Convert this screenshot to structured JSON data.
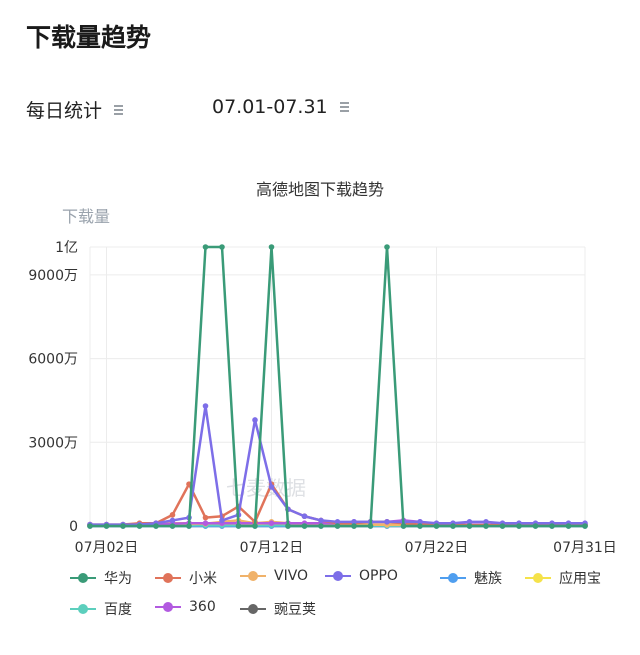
{
  "page": {
    "title": "下载量趋势",
    "filter_daily": "每日统计",
    "filter_range": "07.01-07.31",
    "watermark": "七麦数据"
  },
  "chart_data": {
    "type": "line",
    "title": "高德地图下载趋势",
    "ylabel": "下载量",
    "ylim": [
      0,
      100000000
    ],
    "y_ticks": [
      0,
      30000000,
      60000000,
      90000000,
      100000000
    ],
    "y_tick_labels": [
      "0",
      "3000万",
      "6000万",
      "9000万",
      "1亿"
    ],
    "x_tick_labels": [
      "07月02日",
      "07月12日",
      "07月22日",
      "07月31日"
    ],
    "x_tick_days": [
      2,
      12,
      22,
      31
    ],
    "x": [
      1,
      2,
      3,
      4,
      5,
      6,
      7,
      8,
      9,
      10,
      11,
      12,
      13,
      14,
      15,
      16,
      17,
      18,
      19,
      20,
      21,
      22,
      23,
      24,
      25,
      26,
      27,
      28,
      29,
      30,
      31
    ],
    "legend_position": "bottom",
    "series": [
      {
        "name": "华为",
        "color": "#3a9b78",
        "values": [
          0,
          0,
          0,
          0,
          0,
          0,
          0,
          100000000,
          100000000,
          0,
          0,
          100000000,
          0,
          0,
          0,
          0,
          0,
          0,
          100000000,
          0,
          0,
          0,
          0,
          0,
          0,
          0,
          0,
          0,
          0,
          0,
          0
        ]
      },
      {
        "name": "小米",
        "color": "#e0735a",
        "values": [
          500000,
          500000,
          500000,
          1000000,
          1000000,
          4000000,
          15000000,
          3000000,
          3500000,
          7000000,
          1500000,
          15000000,
          6000000,
          3500000,
          2000000,
          1000000,
          1000000,
          1500000,
          1500000,
          1000000,
          500000,
          500000,
          300000,
          300000,
          300000,
          300000,
          300000,
          300000,
          300000,
          300000,
          300000
        ]
      },
      {
        "name": "VIVO",
        "color": "#f0b26a",
        "values": [
          300000,
          300000,
          300000,
          500000,
          800000,
          1000000,
          1000000,
          800000,
          1500000,
          2000000,
          1000000,
          1500000,
          1000000,
          800000,
          700000,
          600000,
          500000,
          500000,
          500000,
          500000,
          400000,
          400000,
          300000,
          300000,
          300000,
          300000,
          300000,
          300000,
          300000,
          300000,
          300000
        ]
      },
      {
        "name": "OPPO",
        "color": "#7d6ee8",
        "values": [
          500000,
          500000,
          500000,
          500000,
          1000000,
          2000000,
          3000000,
          43000000,
          2000000,
          4000000,
          38000000,
          14000000,
          6000000,
          3500000,
          2000000,
          1500000,
          1500000,
          1500000,
          1500000,
          1500000,
          1500000,
          1000000,
          1000000,
          1500000,
          1500000,
          1000000,
          1000000,
          1000000,
          1000000,
          1000000,
          1000000
        ]
      },
      {
        "name": "魅族",
        "color": "#4f9eef",
        "values": [
          0,
          0,
          0,
          0,
          0,
          0,
          0,
          0,
          0,
          0,
          0,
          0,
          0,
          0,
          0,
          0,
          0,
          0,
          0,
          0,
          0,
          0,
          0,
          0,
          0,
          0,
          0,
          0,
          0,
          0,
          0
        ]
      },
      {
        "name": "应用宝",
        "color": "#f5e24a",
        "values": [
          200000,
          200000,
          200000,
          300000,
          400000,
          500000,
          700000,
          900000,
          1000000,
          900000,
          800000,
          1000000,
          900000,
          800000,
          700000,
          600000,
          500000,
          500000,
          400000,
          400000,
          400000,
          300000,
          300000,
          300000,
          300000,
          300000,
          300000,
          300000,
          300000,
          300000,
          300000
        ]
      },
      {
        "name": "百度",
        "color": "#5ccfbd",
        "values": [
          100000,
          100000,
          100000,
          100000,
          200000,
          200000,
          300000,
          300000,
          300000,
          300000,
          300000,
          300000,
          300000,
          300000,
          200000,
          200000,
          200000,
          200000,
          200000,
          200000,
          200000,
          200000,
          200000,
          200000,
          200000,
          200000,
          200000,
          200000,
          200000,
          200000,
          200000
        ]
      },
      {
        "name": "360",
        "color": "#b25ae0",
        "values": [
          300000,
          300000,
          300000,
          500000,
          500000,
          800000,
          1000000,
          1000000,
          1000000,
          1000000,
          1000000,
          1000000,
          1000000,
          1000000,
          1000000,
          1000000,
          1500000,
          1500000,
          1500000,
          2000000,
          1500000,
          500000,
          500000,
          500000,
          500000,
          500000,
          500000,
          500000,
          500000,
          500000,
          500000
        ]
      },
      {
        "name": "豌豆荚",
        "color": "#666666",
        "values": [
          0,
          0,
          0,
          0,
          0,
          0,
          0,
          0,
          0,
          0,
          0,
          0,
          0,
          0,
          0,
          0,
          0,
          0,
          0,
          0,
          0,
          0,
          0,
          0,
          0,
          0,
          0,
          0,
          0,
          0,
          0
        ]
      }
    ]
  }
}
